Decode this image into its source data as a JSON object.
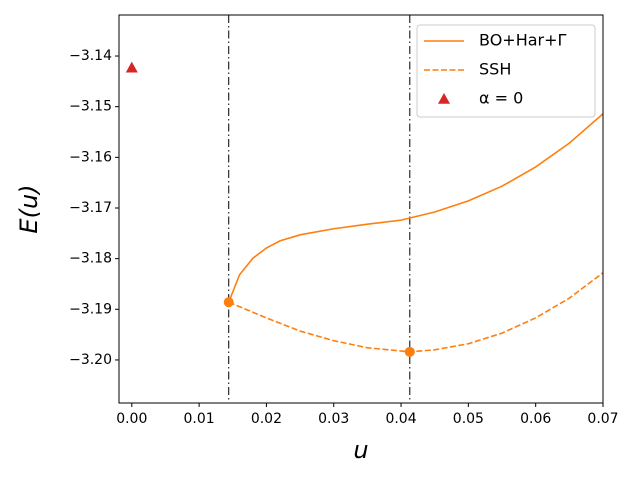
{
  "chart_data": {
    "type": "line",
    "xlabel": "u",
    "ylabel": "E(u)",
    "xlim": [
      -0.0019,
      0.07
    ],
    "ylim": [
      -3.2085,
      -3.1319
    ],
    "xticks": [
      {
        "value": 0,
        "label": "0.00"
      },
      {
        "value": 0.01,
        "label": "0.01"
      },
      {
        "value": 0.02,
        "label": "0.02"
      },
      {
        "value": 0.03,
        "label": "0.03"
      },
      {
        "value": 0.04,
        "label": "0.04"
      },
      {
        "value": 0.05,
        "label": "0.05"
      },
      {
        "value": 0.06,
        "label": "0.06"
      },
      {
        "value": 0.07,
        "label": "0.07"
      }
    ],
    "yticks": [
      {
        "value": -3.14,
        "label": "−3.14"
      },
      {
        "value": -3.15,
        "label": "−3.15"
      },
      {
        "value": -3.16,
        "label": "−3.16"
      },
      {
        "value": -3.17,
        "label": "−3.17"
      },
      {
        "value": -3.18,
        "label": "−3.18"
      },
      {
        "value": -3.19,
        "label": "−3.19"
      },
      {
        "value": -3.2,
        "label": "−3.20"
      }
    ],
    "vlines": [
      0.0144,
      0.0413
    ],
    "legend": "upper right",
    "series": [
      {
        "name": "BO+Har+Γ",
        "color": "#ff7f0e",
        "style": "solid",
        "x": [
          0.0144,
          0.016,
          0.018,
          0.02,
          0.022,
          0.025,
          0.03,
          0.035,
          0.04,
          0.045,
          0.05,
          0.055,
          0.06,
          0.065,
          0.07
        ],
        "values": [
          -3.1886,
          -3.1832,
          -3.1799,
          -3.1779,
          -3.1765,
          -3.1753,
          -3.1741,
          -3.1732,
          -3.1724,
          -3.1708,
          -3.1686,
          -3.1657,
          -3.1619,
          -3.1572,
          -3.1514
        ]
      },
      {
        "name": "SSH",
        "color": "#ff7f0e",
        "style": "dashed",
        "x": [
          0.0144,
          0.02,
          0.025,
          0.03,
          0.035,
          0.0413,
          0.045,
          0.05,
          0.055,
          0.06,
          0.065,
          0.07
        ],
        "values": [
          -3.1886,
          -3.1917,
          -3.1943,
          -3.1962,
          -3.1976,
          -3.1984,
          -3.198,
          -3.1968,
          -3.1947,
          -3.1917,
          -3.1878,
          -3.1828
        ]
      },
      {
        "name": "α = 0",
        "color": "#d62728",
        "style": "triangle",
        "x": [
          0
        ],
        "values": [
          -3.1423
        ]
      }
    ],
    "points": {
      "color": "#ff7f0e",
      "x": [
        0.0144,
        0.0413
      ],
      "values": [
        -3.1886,
        -3.1984
      ]
    }
  }
}
